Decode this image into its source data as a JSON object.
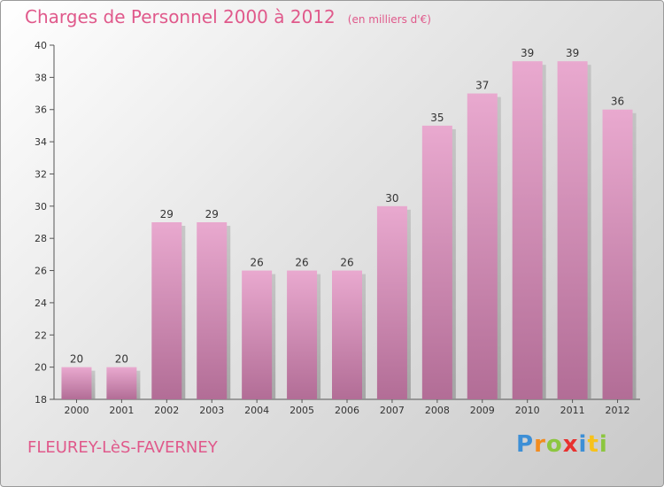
{
  "title": "Charges de Personnel 2000 à 2012",
  "subtitle": "(en milliers d'€)",
  "commune": "FLEUREY-LèS-FAVERNEY",
  "logo": {
    "letters": [
      {
        "char": "P",
        "color": "#3d8fd6"
      },
      {
        "char": "r",
        "color": "#f28c1e"
      },
      {
        "char": "o",
        "color": "#8cc63f"
      },
      {
        "char": "x",
        "color": "#e8312f"
      },
      {
        "char": "i",
        "color": "#3d8fd6"
      },
      {
        "char": "t",
        "color": "#f7c21b"
      },
      {
        "char": "i",
        "color": "#8cc63f"
      }
    ]
  },
  "chart_data": {
    "type": "bar",
    "categories": [
      "2000",
      "2001",
      "2002",
      "2003",
      "2004",
      "2005",
      "2006",
      "2007",
      "2008",
      "2009",
      "2010",
      "2011",
      "2012"
    ],
    "values": [
      20,
      20,
      29,
      29,
      26,
      26,
      26,
      30,
      35,
      37,
      39,
      39,
      36
    ],
    "title": "Charges de Personnel 2000 à 2012",
    "subtitle": "(en milliers d'€)",
    "xlabel": "",
    "ylabel": "",
    "ylim": [
      18,
      40
    ],
    "yticks": [
      18,
      20,
      22,
      24,
      26,
      28,
      30,
      32,
      34,
      36,
      38,
      40
    ],
    "grid": false,
    "bar_color": "#d58ab6"
  }
}
